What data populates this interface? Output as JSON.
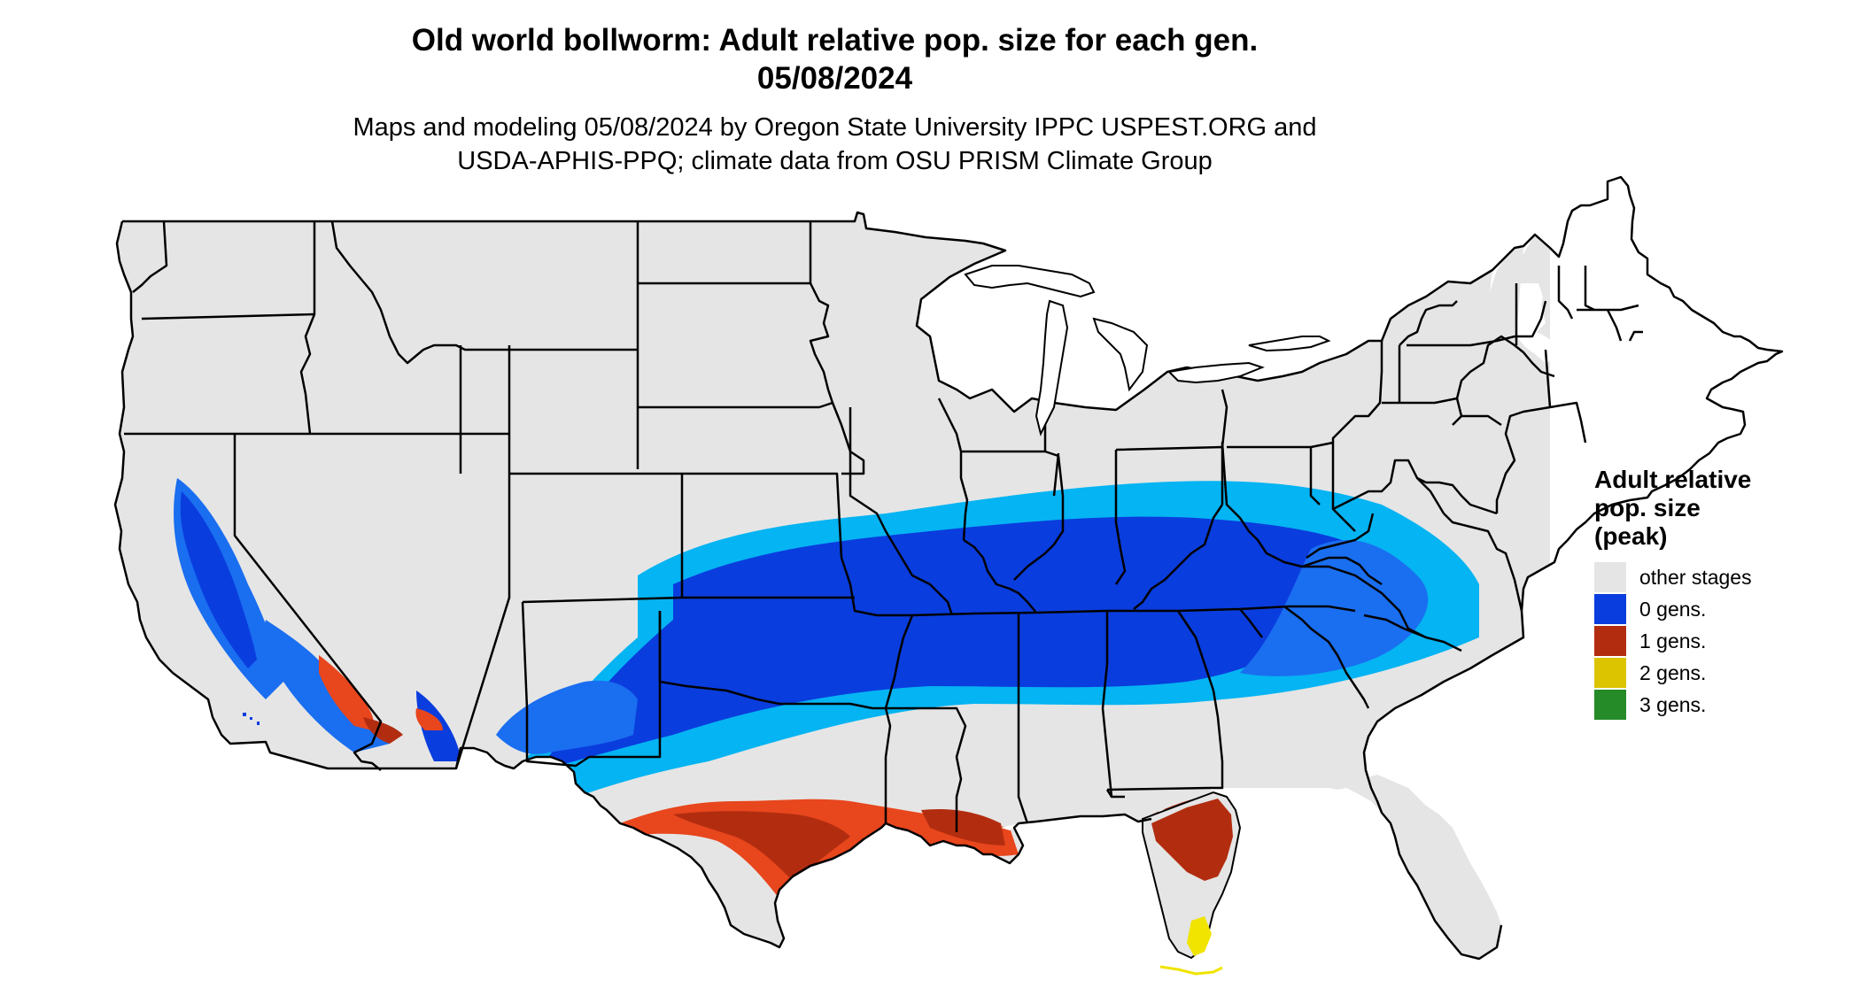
{
  "header": {
    "title_line1": "Old world bollworm: Adult relative pop. size for each gen.",
    "title_line2": "05/08/2024",
    "subtitle_line1": "Maps and modeling 05/08/2024 by Oregon State University IPPC USPEST.ORG and",
    "subtitle_line2": "USDA-APHIS-PPQ; climate data from OSU PRISM Climate Group"
  },
  "legend": {
    "title_lines": [
      "Adult relative",
      "pop. size",
      "(peak)"
    ],
    "items": [
      {
        "label": "other stages",
        "color": "#e5e5e5"
      },
      {
        "label": "0 gens.",
        "color": "#0a3dde"
      },
      {
        "label": "1 gens.",
        "color": "#b22d10"
      },
      {
        "label": "2 gens.",
        "color": "#dcc400"
      },
      {
        "label": "3 gens.",
        "color": "#258a28"
      }
    ]
  },
  "map": {
    "region": "contiguous United States",
    "base_color": "#e5e5e5",
    "border_color": "#000000",
    "zone_colors": {
      "gen0_dark": "#0a3dde",
      "gen0_mid": "#1a6ef0",
      "gen0_light": "#05b4f2",
      "gen1_dark": "#b22d10",
      "gen1_light": "#e8461d",
      "gen2": "#f0e400"
    }
  }
}
